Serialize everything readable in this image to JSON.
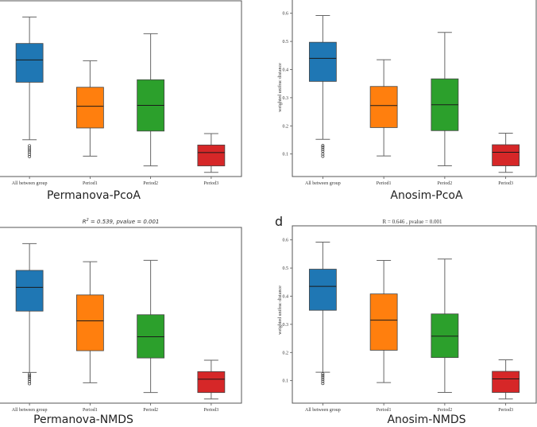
{
  "figure": {
    "categories": [
      "All between group",
      "Period1",
      "Period2",
      "Period3"
    ],
    "colors": [
      "#1f77b4",
      "#ff7f0e",
      "#2ca02c",
      "#d62728"
    ]
  },
  "chart_data": [
    {
      "id": "permanova-pcoa",
      "type": "boxplot",
      "caption": "Permanova-PcoA",
      "title": "",
      "panel_letter": "",
      "ylabel": "",
      "show_yticks": false,
      "ylim": [
        0.02,
        0.65
      ],
      "yticks": [],
      "categories": [
        "All between group",
        "Period1",
        "Period2",
        "Period3"
      ],
      "series": [
        {
          "name": "All between group",
          "whisker_low": 0.152,
          "q1": 0.358,
          "median": 0.438,
          "q3": 0.497,
          "whisker_high": 0.592,
          "outliers": [
            0.13,
            0.122,
            0.115,
            0.108,
            0.1,
            0.092
          ]
        },
        {
          "name": "Period1",
          "whisker_low": 0.093,
          "q1": 0.194,
          "median": 0.272,
          "q3": 0.34,
          "whisker_high": 0.435,
          "outliers": []
        },
        {
          "name": "Period2",
          "whisker_low": 0.058,
          "q1": 0.183,
          "median": 0.275,
          "q3": 0.367,
          "whisker_high": 0.532,
          "outliers": []
        },
        {
          "name": "Period3",
          "whisker_low": 0.035,
          "q1": 0.058,
          "median": 0.106,
          "q3": 0.133,
          "whisker_high": 0.174,
          "outliers": []
        }
      ]
    },
    {
      "id": "anosim-pcoa",
      "type": "boxplot",
      "caption": "Anosim-PcoA",
      "title": "",
      "panel_letter": "",
      "ylabel": "weighted unifrac distance",
      "show_yticks": true,
      "ylim": [
        0.02,
        0.65
      ],
      "yticks": [
        "0.1",
        "0.2",
        "0.3",
        "0.4",
        "0.5",
        "0.6"
      ],
      "categories": [
        "All between group",
        "Period1",
        "Period2",
        "Period3"
      ],
      "series": [
        {
          "name": "All between group",
          "whisker_low": 0.152,
          "q1": 0.358,
          "median": 0.44,
          "q3": 0.497,
          "whisker_high": 0.592,
          "outliers": [
            0.13,
            0.124,
            0.117,
            0.11,
            0.1,
            0.092
          ]
        },
        {
          "name": "Period1",
          "whisker_low": 0.093,
          "q1": 0.194,
          "median": 0.272,
          "q3": 0.34,
          "whisker_high": 0.435,
          "outliers": []
        },
        {
          "name": "Period2",
          "whisker_low": 0.058,
          "q1": 0.183,
          "median": 0.275,
          "q3": 0.367,
          "whisker_high": 0.532,
          "outliers": []
        },
        {
          "name": "Period3",
          "whisker_low": 0.035,
          "q1": 0.058,
          "median": 0.106,
          "q3": 0.133,
          "whisker_high": 0.174,
          "outliers": []
        }
      ]
    },
    {
      "id": "permanova-nmds",
      "type": "boxplot",
      "caption": "Permanova-NMDS",
      "title": "R² = 0.539, pvalue = 0.001",
      "title_parts": {
        "r_symbol": "R",
        "r_exp": "2",
        "rest": " = 0.539, pvalue = 0.001"
      },
      "panel_letter": "",
      "ylabel": "",
      "show_yticks": false,
      "ylim": [
        0.02,
        0.65
      ],
      "yticks": [],
      "categories": [
        "All between group",
        "Period1",
        "Period2",
        "Period3"
      ],
      "series": [
        {
          "name": "All between group",
          "whisker_low": 0.13,
          "q1": 0.35,
          "median": 0.435,
          "q3": 0.496,
          "whisker_high": 0.592,
          "outliers": [
            0.124,
            0.118,
            0.112,
            0.105,
            0.098,
            0.09
          ]
        },
        {
          "name": "Period1",
          "whisker_low": 0.093,
          "q1": 0.208,
          "median": 0.315,
          "q3": 0.408,
          "whisker_high": 0.527,
          "outliers": []
        },
        {
          "name": "Period2",
          "whisker_low": 0.058,
          "q1": 0.182,
          "median": 0.258,
          "q3": 0.337,
          "whisker_high": 0.532,
          "outliers": []
        },
        {
          "name": "Period3",
          "whisker_low": 0.035,
          "q1": 0.058,
          "median": 0.106,
          "q3": 0.133,
          "whisker_high": 0.174,
          "outliers": []
        }
      ]
    },
    {
      "id": "anosim-nmds",
      "type": "boxplot",
      "caption": "Anosim-NMDS",
      "title": "R = 0.646 , pvalue = 0.001",
      "panel_letter": "d",
      "ylabel": "weighted unifrac distance",
      "show_yticks": true,
      "ylim": [
        0.02,
        0.65
      ],
      "yticks": [
        "0.1",
        "0.2",
        "0.3",
        "0.4",
        "0.5",
        "0.6"
      ],
      "categories": [
        "All between group",
        "Period1",
        "Period2",
        "Period3"
      ],
      "series": [
        {
          "name": "All between group",
          "whisker_low": 0.13,
          "q1": 0.35,
          "median": 0.435,
          "q3": 0.496,
          "whisker_high": 0.592,
          "outliers": [
            0.124,
            0.118,
            0.112,
            0.105,
            0.098,
            0.09
          ]
        },
        {
          "name": "Period1",
          "whisker_low": 0.093,
          "q1": 0.208,
          "median": 0.315,
          "q3": 0.408,
          "whisker_high": 0.527,
          "outliers": []
        },
        {
          "name": "Period2",
          "whisker_low": 0.058,
          "q1": 0.182,
          "median": 0.258,
          "q3": 0.337,
          "whisker_high": 0.532,
          "outliers": []
        },
        {
          "name": "Period3",
          "whisker_low": 0.035,
          "q1": 0.058,
          "median": 0.106,
          "q3": 0.133,
          "whisker_high": 0.174,
          "outliers": []
        }
      ]
    }
  ]
}
